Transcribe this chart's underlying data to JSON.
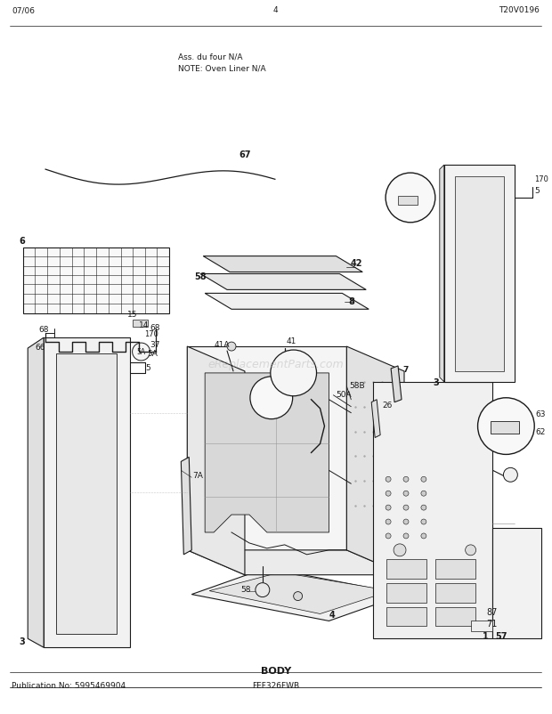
{
  "pub_no": "Publication No: 5995469904",
  "model": "FEF326FWB",
  "section": "BODY",
  "date": "07/06",
  "page": "4",
  "diagram_id": "T20V0196",
  "note_line1": "NOTE: Oven Liner N/A",
  "note_line2": "Ass. du four N/A",
  "watermark": "eReplacementParts.com",
  "bg_color": "#ffffff",
  "lc": "#1a1a1a",
  "tc": "#1a1a1a",
  "lw": 0.7
}
